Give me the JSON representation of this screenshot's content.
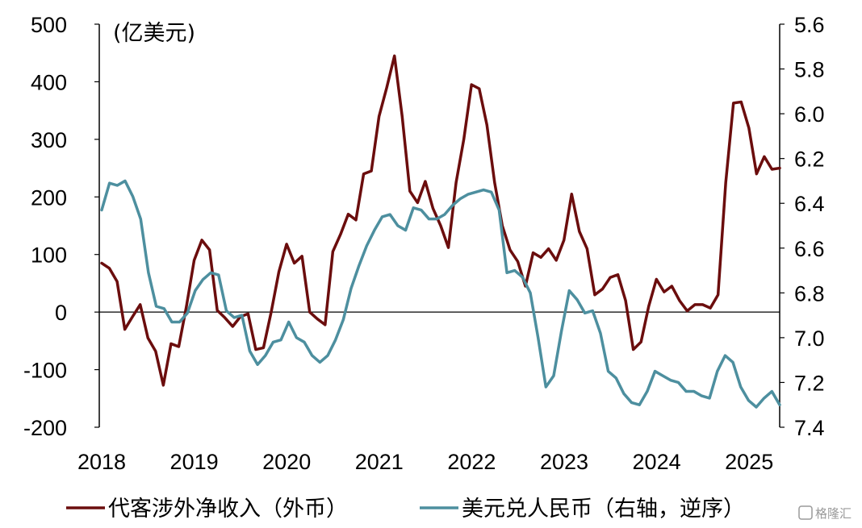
{
  "chart_data": {
    "type": "line",
    "unit_label": "(亿美元)",
    "x_ticks": [
      "2018",
      "2019",
      "2020",
      "2021",
      "2022",
      "2023",
      "2024",
      "2025"
    ],
    "x_range": [
      2018.0,
      2025.33
    ],
    "y_left": {
      "min": -200,
      "max": 500,
      "ticks": [
        "500",
        "400",
        "300",
        "200",
        "100",
        "0",
        "-100",
        "-200"
      ]
    },
    "y_right": {
      "min": 5.6,
      "max": 7.4,
      "inverted": true,
      "ticks": [
        "5.6",
        "5.8",
        "6.0",
        "6.2",
        "6.4",
        "6.6",
        "6.8",
        "7.0",
        "7.2",
        "7.4"
      ]
    },
    "grid": false,
    "legend_position": "bottom",
    "series": [
      {
        "name": "代客涉外净收入（外币）",
        "axis": "left",
        "color": "#6b0d0d",
        "values": [
          85,
          76,
          53,
          -30,
          -8,
          13,
          -45,
          -68,
          -127,
          -55,
          -60,
          10,
          90,
          125,
          108,
          3,
          -10,
          -25,
          -8,
          -3,
          -65,
          -62,
          0,
          70,
          118,
          85,
          97,
          0,
          -12,
          -22,
          105,
          135,
          170,
          160,
          240,
          245,
          340,
          390,
          445,
          340,
          210,
          190,
          227,
          180,
          150,
          112,
          225,
          300,
          395,
          388,
          325,
          225,
          150,
          108,
          88,
          45,
          103,
          95,
          110,
          90,
          125,
          205,
          140,
          110,
          30,
          40,
          60,
          65,
          20,
          -65,
          -52,
          10,
          57,
          35,
          45,
          20,
          2,
          13,
          13,
          7,
          30,
          225,
          363,
          365,
          320,
          240,
          270,
          248,
          250
        ]
      },
      {
        "name": "美元兑人民币（右轴，逆序）",
        "axis": "right",
        "color": "#4d8f9f",
        "values": [
          6.43,
          6.31,
          6.32,
          6.3,
          6.37,
          6.47,
          6.71,
          6.86,
          6.87,
          6.93,
          6.93,
          6.89,
          6.79,
          6.74,
          6.71,
          6.72,
          6.88,
          6.91,
          6.9,
          7.06,
          7.12,
          7.08,
          7.02,
          7.01,
          6.93,
          7.0,
          7.02,
          7.08,
          7.11,
          7.08,
          7.01,
          6.92,
          6.78,
          6.68,
          6.59,
          6.52,
          6.46,
          6.45,
          6.5,
          6.52,
          6.42,
          6.43,
          6.47,
          6.47,
          6.45,
          6.41,
          6.38,
          6.36,
          6.35,
          6.34,
          6.35,
          6.43,
          6.71,
          6.7,
          6.73,
          6.8,
          7.0,
          7.22,
          7.17,
          6.97,
          6.79,
          6.83,
          6.89,
          6.88,
          6.98,
          7.15,
          7.18,
          7.25,
          7.29,
          7.3,
          7.24,
          7.15,
          7.17,
          7.19,
          7.2,
          7.24,
          7.24,
          7.26,
          7.27,
          7.15,
          7.08,
          7.11,
          7.22,
          7.28,
          7.31,
          7.27,
          7.24,
          7.3
        ]
      }
    ]
  },
  "watermark": "格隆汇"
}
